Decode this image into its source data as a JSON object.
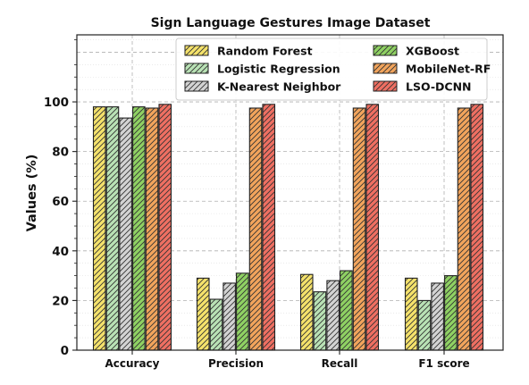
{
  "chart_data": {
    "type": "bar",
    "title": "Sign Language Gestures Image Dataset",
    "xlabel": "",
    "ylabel": "Values (%)",
    "ylim": [
      0,
      100
    ],
    "yticks": [
      "0",
      "20",
      "40",
      "60",
      "80",
      "100"
    ],
    "grid": true,
    "legend_position": "top-center",
    "categories": [
      "Accuracy",
      "Precision",
      "Recall",
      "F1 score"
    ],
    "series": [
      {
        "name": "Random Forest",
        "color": "#f5e26b",
        "values": [
          98.0,
          29.0,
          30.5,
          29.0
        ]
      },
      {
        "name": "Logistic Regression",
        "color": "#b9e2b5",
        "values": [
          98.0,
          20.5,
          23.5,
          20.0
        ]
      },
      {
        "name": "K-Nearest Neighbor",
        "color": "#d3d3d3",
        "values": [
          93.5,
          27.0,
          28.0,
          27.0
        ]
      },
      {
        "name": "XGBoost",
        "color": "#8fd163",
        "values": [
          98.0,
          31.0,
          32.0,
          30.0
        ]
      },
      {
        "name": "MobileNet-RF",
        "color": "#f2a45c",
        "values": [
          97.5,
          97.5,
          97.5,
          97.5
        ]
      },
      {
        "name": "LSO-DCNN",
        "color": "#ef6f62",
        "values": [
          99.0,
          99.0,
          99.0,
          99.0
        ]
      }
    ]
  }
}
